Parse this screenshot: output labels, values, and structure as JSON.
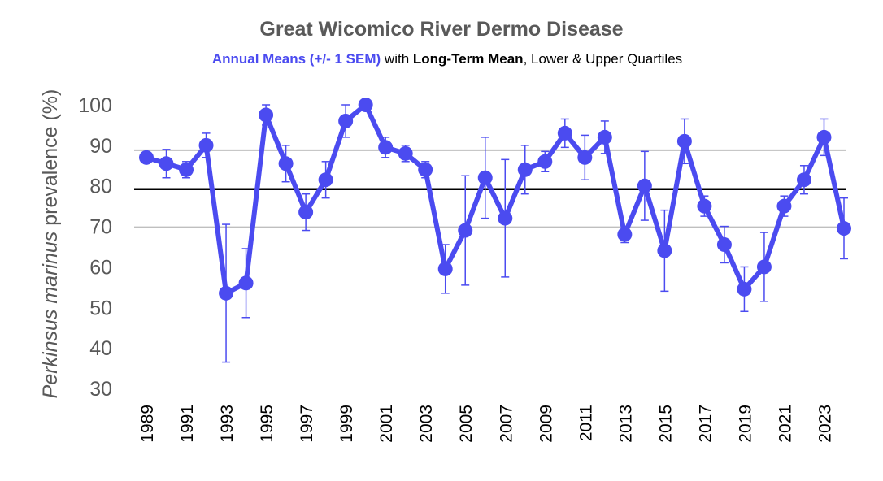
{
  "chart_data": {
    "type": "line",
    "title": "Great Wicomico River Dermo Disease",
    "subtitle": {
      "part1": "Annual Means (+/- 1 SEM)",
      "part2": " with ",
      "part3": "Long-Term Mean",
      "part4": ", Lower & Upper Quartiles"
    },
    "ylabel_italic": "Perkinsus marinus",
    "ylabel_rest": " prevalence (%)",
    "xlabel": "",
    "ylim": [
      30,
      100
    ],
    "yticks": [
      30,
      40,
      50,
      60,
      70,
      80,
      90,
      100
    ],
    "x": [
      1989,
      1990,
      1991,
      1992,
      1993,
      1994,
      1995,
      1996,
      1997,
      1998,
      1999,
      2000,
      2001,
      2002,
      2003,
      2004,
      2005,
      2006,
      2007,
      2008,
      2009,
      2010,
      2011,
      2012,
      2013,
      2014,
      2015,
      2016,
      2017,
      2018,
      2019,
      2020,
      2021,
      2022,
      2023,
      2024
    ],
    "xtick_labels": [
      "1989",
      "1991",
      "1993",
      "1995",
      "1997",
      "1999",
      "2001",
      "2003",
      "2005",
      "2007",
      "2009",
      "2011",
      "2013",
      "2015",
      "2017",
      "2019",
      "2021",
      "2023"
    ],
    "series": [
      {
        "name": "Annual Means",
        "color": "#4B4BF0",
        "values": [
          87,
          85.5,
          84,
          90,
          53.5,
          56,
          97.5,
          85.5,
          73.5,
          81.5,
          96,
          100,
          89.5,
          88,
          84,
          59.5,
          69,
          82,
          72,
          84,
          86,
          93,
          87,
          92,
          68,
          80,
          64,
          91,
          75,
          65.5,
          54.5,
          60,
          75,
          81.5,
          92,
          69.5
        ],
        "sem": [
          0.5,
          3.5,
          2,
          3,
          17,
          8.5,
          2.5,
          4.5,
          4.5,
          4.5,
          4,
          0.5,
          2.5,
          2,
          2,
          6,
          13.5,
          10,
          14.5,
          6,
          2.5,
          3.5,
          5.5,
          4,
          2,
          8.5,
          10,
          5.5,
          2.5,
          4.5,
          5.5,
          8.5,
          2.5,
          3.5,
          4.5,
          7.5
        ]
      }
    ],
    "reference_lines": {
      "long_term_mean": 79.2,
      "lower_quartile": 69.8,
      "upper_quartile": 88.8
    },
    "colors": {
      "series": "#4B4BF0",
      "mean_line": "#000000",
      "quartile_lines": "#BFBFBF",
      "text_gray": "#595959"
    },
    "grid": false,
    "legend": "none"
  }
}
